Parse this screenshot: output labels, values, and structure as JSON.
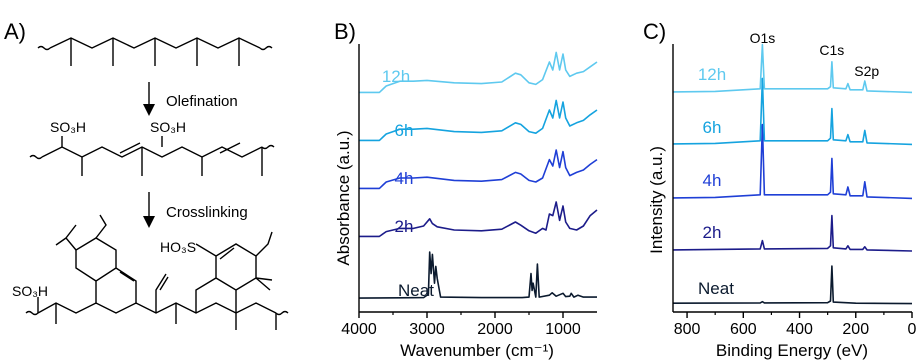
{
  "panels": {
    "a": {
      "letter": "A)",
      "step1": "Olefination",
      "step2": "Crosslinking",
      "so3h": "SO₃H",
      "ho3s": "HO₃S"
    }
  },
  "colors": {
    "neat": "#0b1a2e",
    "2h": "#1c1c8a",
    "4h": "#1f3fd6",
    "6h": "#15a3df",
    "12h": "#5ec9ef",
    "axis": "#000000"
  },
  "chart_data": [
    {
      "panel": "B)",
      "type": "line",
      "title": "",
      "xlabel": "Wavenumber (cm⁻¹)",
      "ylabel": "Absorbance (a.u.)",
      "xlim": [
        4000,
        500
      ],
      "x_reversed": true,
      "xticks": [
        "4000",
        "3000",
        "2000",
        "1000"
      ],
      "xtick_values": [
        4000,
        3000,
        2000,
        1000
      ],
      "y_ticks_shown": false,
      "legend": "inline labels",
      "series": [
        {
          "name": "Neat",
          "color_key": "neat",
          "points": [
            [
              4000,
              0.04
            ],
            [
              3400,
              0.045
            ],
            [
              3050,
              0.05
            ],
            [
              2980,
              0.12
            ],
            [
              2960,
              1.0
            ],
            [
              2940,
              0.55
            ],
            [
              2920,
              0.95
            ],
            [
              2890,
              0.35
            ],
            [
              2870,
              0.7
            ],
            [
              2850,
              0.45
            ],
            [
              2800,
              0.06
            ],
            [
              2200,
              0.05
            ],
            [
              1600,
              0.05
            ],
            [
              1500,
              0.06
            ],
            [
              1470,
              0.55
            ],
            [
              1455,
              0.2
            ],
            [
              1440,
              0.35
            ],
            [
              1400,
              0.06
            ],
            [
              1377,
              0.75
            ],
            [
              1350,
              0.06
            ],
            [
              1200,
              0.1
            ],
            [
              1160,
              0.15
            ],
            [
              1100,
              0.08
            ],
            [
              1000,
              0.14
            ],
            [
              960,
              0.07
            ],
            [
              900,
              0.08
            ],
            [
              880,
              0.14
            ],
            [
              840,
              0.06
            ],
            [
              780,
              0.1
            ],
            [
              700,
              0.06
            ],
            [
              500,
              0.06
            ]
          ]
        },
        {
          "name": "2h",
          "color_key": "2h",
          "points": [
            [
              4000,
              0.02
            ],
            [
              3700,
              0.02
            ],
            [
              3600,
              0.08
            ],
            [
              3400,
              0.12
            ],
            [
              3200,
              0.12
            ],
            [
              3050,
              0.15
            ],
            [
              2960,
              0.24
            ],
            [
              2920,
              0.18
            ],
            [
              2850,
              0.14
            ],
            [
              2600,
              0.1
            ],
            [
              2200,
              0.09
            ],
            [
              1900,
              0.11
            ],
            [
              1700,
              0.2
            ],
            [
              1620,
              0.16
            ],
            [
              1500,
              0.09
            ],
            [
              1400,
              0.06
            ],
            [
              1300,
              0.12
            ],
            [
              1250,
              0.1
            ],
            [
              1200,
              0.3
            ],
            [
              1150,
              0.28
            ],
            [
              1100,
              0.45
            ],
            [
              1050,
              0.22
            ],
            [
              1000,
              0.4
            ],
            [
              960,
              0.2
            ],
            [
              900,
              0.12
            ],
            [
              800,
              0.1
            ],
            [
              700,
              0.15
            ],
            [
              600,
              0.28
            ],
            [
              500,
              0.35
            ]
          ]
        },
        {
          "name": "4h",
          "color_key": "4h",
          "points": [
            [
              4000,
              0.02
            ],
            [
              3700,
              0.02
            ],
            [
              3600,
              0.1
            ],
            [
              3400,
              0.15
            ],
            [
              3200,
              0.15
            ],
            [
              3000,
              0.16
            ],
            [
              2600,
              0.12
            ],
            [
              2200,
              0.11
            ],
            [
              1900,
              0.13
            ],
            [
              1700,
              0.22
            ],
            [
              1620,
              0.2
            ],
            [
              1500,
              0.12
            ],
            [
              1400,
              0.1
            ],
            [
              1300,
              0.15
            ],
            [
              1200,
              0.38
            ],
            [
              1150,
              0.3
            ],
            [
              1100,
              0.5
            ],
            [
              1050,
              0.28
            ],
            [
              1000,
              0.48
            ],
            [
              960,
              0.28
            ],
            [
              900,
              0.18
            ],
            [
              800,
              0.22
            ],
            [
              700,
              0.25
            ],
            [
              600,
              0.32
            ],
            [
              500,
              0.38
            ]
          ]
        },
        {
          "name": "6h",
          "color_key": "6h",
          "points": [
            [
              4000,
              0.02
            ],
            [
              3700,
              0.02
            ],
            [
              3600,
              0.1
            ],
            [
              3400,
              0.16
            ],
            [
              3200,
              0.16
            ],
            [
              3000,
              0.17
            ],
            [
              2600,
              0.13
            ],
            [
              2200,
              0.12
            ],
            [
              1900,
              0.14
            ],
            [
              1700,
              0.24
            ],
            [
              1620,
              0.22
            ],
            [
              1500,
              0.13
            ],
            [
              1400,
              0.11
            ],
            [
              1300,
              0.17
            ],
            [
              1200,
              0.4
            ],
            [
              1150,
              0.3
            ],
            [
              1100,
              0.52
            ],
            [
              1050,
              0.3
            ],
            [
              1000,
              0.5
            ],
            [
              960,
              0.3
            ],
            [
              900,
              0.2
            ],
            [
              800,
              0.24
            ],
            [
              700,
              0.27
            ],
            [
              600,
              0.34
            ],
            [
              500,
              0.4
            ]
          ]
        },
        {
          "name": "12h",
          "color_key": "12h",
          "points": [
            [
              4000,
              0.02
            ],
            [
              3700,
              0.02
            ],
            [
              3600,
              0.1
            ],
            [
              3400,
              0.16
            ],
            [
              3200,
              0.16
            ],
            [
              3000,
              0.17
            ],
            [
              2600,
              0.14
            ],
            [
              2200,
              0.13
            ],
            [
              1900,
              0.15
            ],
            [
              1700,
              0.26
            ],
            [
              1620,
              0.24
            ],
            [
              1500,
              0.14
            ],
            [
              1400,
              0.12
            ],
            [
              1300,
              0.18
            ],
            [
              1200,
              0.4
            ],
            [
              1150,
              0.3
            ],
            [
              1100,
              0.52
            ],
            [
              1050,
              0.3
            ],
            [
              1000,
              0.5
            ],
            [
              960,
              0.3
            ],
            [
              900,
              0.22
            ],
            [
              800,
              0.26
            ],
            [
              700,
              0.28
            ],
            [
              600,
              0.34
            ],
            [
              500,
              0.4
            ]
          ]
        }
      ]
    },
    {
      "panel": "C)",
      "type": "line",
      "title": "",
      "xlabel": "Binding Energy (eV)",
      "ylabel": "Intensity (a.u.)",
      "xlim": [
        850,
        0
      ],
      "x_reversed": true,
      "xticks": [
        "800",
        "600",
        "400",
        "200",
        "0"
      ],
      "xtick_values": [
        800,
        600,
        400,
        200,
        0
      ],
      "y_ticks_shown": false,
      "legend": "inline labels",
      "annotations": [
        {
          "text": "O1s",
          "x": 532
        },
        {
          "text": "C1s",
          "x": 285
        },
        {
          "text": "S2p",
          "x": 168
        }
      ],
      "series": [
        {
          "name": "Neat",
          "color_key": "neat",
          "points": [
            [
              850,
              0.04
            ],
            [
              700,
              0.05
            ],
            [
              540,
              0.06
            ],
            [
              532,
              0.12
            ],
            [
              525,
              0.06
            ],
            [
              300,
              0.07
            ],
            [
              290,
              0.16
            ],
            [
              285,
              2.0
            ],
            [
              280,
              0.1
            ],
            [
              200,
              0.04
            ],
            [
              0,
              0.02
            ]
          ]
        },
        {
          "name": "2h",
          "color_key": "2h",
          "points": [
            [
              850,
              0.04
            ],
            [
              700,
              0.05
            ],
            [
              540,
              0.06
            ],
            [
              532,
              0.22
            ],
            [
              525,
              0.06
            ],
            [
              300,
              0.07
            ],
            [
              290,
              0.12
            ],
            [
              285,
              0.7
            ],
            [
              280,
              0.08
            ],
            [
              235,
              0.06
            ],
            [
              228,
              0.12
            ],
            [
              220,
              0.05
            ],
            [
              175,
              0.05
            ],
            [
              168,
              0.1
            ],
            [
              160,
              0.04
            ],
            [
              0,
              0.02
            ]
          ]
        },
        {
          "name": "4h",
          "color_key": "4h",
          "points": [
            [
              850,
              0.04
            ],
            [
              700,
              0.05
            ],
            [
              540,
              0.1
            ],
            [
              532,
              1.45
            ],
            [
              525,
              0.1
            ],
            [
              300,
              0.1
            ],
            [
              290,
              0.15
            ],
            [
              285,
              0.8
            ],
            [
              280,
              0.12
            ],
            [
              235,
              0.1
            ],
            [
              228,
              0.25
            ],
            [
              220,
              0.08
            ],
            [
              175,
              0.08
            ],
            [
              168,
              0.35
            ],
            [
              160,
              0.06
            ],
            [
              0,
              0.03
            ]
          ]
        },
        {
          "name": "6h",
          "color_key": "6h",
          "points": [
            [
              850,
              0.04
            ],
            [
              700,
              0.05
            ],
            [
              540,
              0.1
            ],
            [
              532,
              1.3
            ],
            [
              525,
              0.1
            ],
            [
              300,
              0.1
            ],
            [
              290,
              0.15
            ],
            [
              285,
              0.72
            ],
            [
              280,
              0.12
            ],
            [
              235,
              0.1
            ],
            [
              228,
              0.22
            ],
            [
              220,
              0.08
            ],
            [
              175,
              0.08
            ],
            [
              168,
              0.3
            ],
            [
              160,
              0.06
            ],
            [
              0,
              0.03
            ]
          ]
        },
        {
          "name": "12h",
          "color_key": "12h",
          "points": [
            [
              850,
              0.04
            ],
            [
              700,
              0.05
            ],
            [
              540,
              0.1
            ],
            [
              532,
              0.95
            ],
            [
              525,
              0.1
            ],
            [
              300,
              0.1
            ],
            [
              290,
              0.14
            ],
            [
              285,
              0.62
            ],
            [
              280,
              0.12
            ],
            [
              235,
              0.1
            ],
            [
              228,
              0.2
            ],
            [
              220,
              0.08
            ],
            [
              175,
              0.08
            ],
            [
              168,
              0.25
            ],
            [
              160,
              0.06
            ],
            [
              0,
              0.03
            ]
          ]
        }
      ]
    }
  ]
}
